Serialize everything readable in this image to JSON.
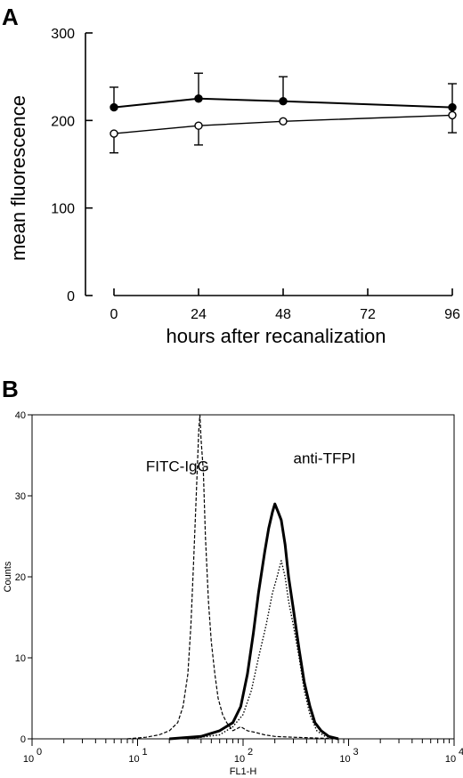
{
  "panels": {
    "a": {
      "label": "A"
    },
    "b": {
      "label": "B"
    }
  },
  "chart_data": [
    {
      "type": "line",
      "panel": "A",
      "xlabel": "hours after recanalization",
      "ylabel": "mean fluorescence",
      "x": [
        0,
        24,
        48,
        96
      ],
      "xticks": [
        0,
        24,
        48,
        72,
        96
      ],
      "yticks": [
        0,
        100,
        200,
        300
      ],
      "xlim": [
        0,
        96
      ],
      "ylim": [
        0,
        300
      ],
      "grid": false,
      "series": [
        {
          "marker": "filled-circle",
          "values": [
            215,
            225,
            222,
            215
          ],
          "error_plus": [
            23,
            29,
            28,
            27
          ]
        },
        {
          "marker": "open-circle",
          "values": [
            185,
            194,
            199,
            206
          ],
          "error_minus": [
            22,
            22,
            0,
            20
          ]
        }
      ]
    },
    {
      "type": "line",
      "panel": "B",
      "xlabel": "FL1-H",
      "ylabel": "Counts",
      "x_scale": "log",
      "xlim": [
        1,
        10000
      ],
      "ylim": [
        0,
        40
      ],
      "xticks": [
        {
          "base": "10",
          "exp": "0"
        },
        {
          "base": "10",
          "exp": "1"
        },
        {
          "base": "10",
          "exp": "2"
        },
        {
          "base": "10",
          "exp": "3"
        },
        {
          "base": "10",
          "exp": "4"
        }
      ],
      "yticks": [
        0,
        10,
        20,
        30,
        40
      ],
      "annotations": [
        {
          "text": "FITC-IgG",
          "x": 12,
          "y": 33
        },
        {
          "text": "anti-TFPI",
          "x": 300,
          "y": 34
        }
      ],
      "series": [
        {
          "style": "dashed",
          "points": [
            [
              8,
              0
            ],
            [
              12,
              0.2
            ],
            [
              16,
              0.5
            ],
            [
              20,
              1
            ],
            [
              24,
              2
            ],
            [
              27,
              4
            ],
            [
              30,
              8
            ],
            [
              32,
              14
            ],
            [
              34,
              22
            ],
            [
              36,
              30
            ],
            [
              38,
              38
            ],
            [
              39,
              40
            ],
            [
              40,
              37
            ],
            [
              42,
              33
            ],
            [
              44,
              25
            ],
            [
              47,
              17
            ],
            [
              50,
              12
            ],
            [
              54,
              8
            ],
            [
              58,
              5
            ],
            [
              64,
              3
            ],
            [
              70,
              2
            ],
            [
              80,
              1
            ],
            [
              95,
              1.5
            ],
            [
              110,
              1
            ],
            [
              130,
              0.8
            ],
            [
              160,
              0.5
            ],
            [
              200,
              0.3
            ],
            [
              300,
              0.2
            ],
            [
              500,
              0.1
            ],
            [
              800,
              0
            ]
          ]
        },
        {
          "style": "solid-thick",
          "points": [
            [
              20,
              0
            ],
            [
              40,
              0.3
            ],
            [
              60,
              1
            ],
            [
              80,
              2
            ],
            [
              95,
              4
            ],
            [
              110,
              8
            ],
            [
              125,
              13
            ],
            [
              140,
              18
            ],
            [
              160,
              23
            ],
            [
              175,
              26
            ],
            [
              190,
              28
            ],
            [
              200,
              29
            ],
            [
              215,
              28
            ],
            [
              230,
              27
            ],
            [
              250,
              24
            ],
            [
              270,
              20
            ],
            [
              300,
              16
            ],
            [
              340,
              11
            ],
            [
              380,
              7
            ],
            [
              430,
              4
            ],
            [
              480,
              2
            ],
            [
              550,
              1
            ],
            [
              650,
              0.3
            ],
            [
              800,
              0
            ]
          ]
        },
        {
          "style": "dotted",
          "points": [
            [
              30,
              0
            ],
            [
              60,
              0.5
            ],
            [
              80,
              1.5
            ],
            [
              100,
              3
            ],
            [
              120,
              6
            ],
            [
              140,
              10
            ],
            [
              165,
              14
            ],
            [
              190,
              18
            ],
            [
              210,
              20
            ],
            [
              230,
              22
            ],
            [
              250,
              20
            ],
            [
              270,
              17
            ],
            [
              300,
              14
            ],
            [
              340,
              10
            ],
            [
              380,
              6
            ],
            [
              430,
              3
            ],
            [
              500,
              1
            ],
            [
              600,
              0.3
            ],
            [
              800,
              0
            ]
          ]
        }
      ]
    }
  ]
}
